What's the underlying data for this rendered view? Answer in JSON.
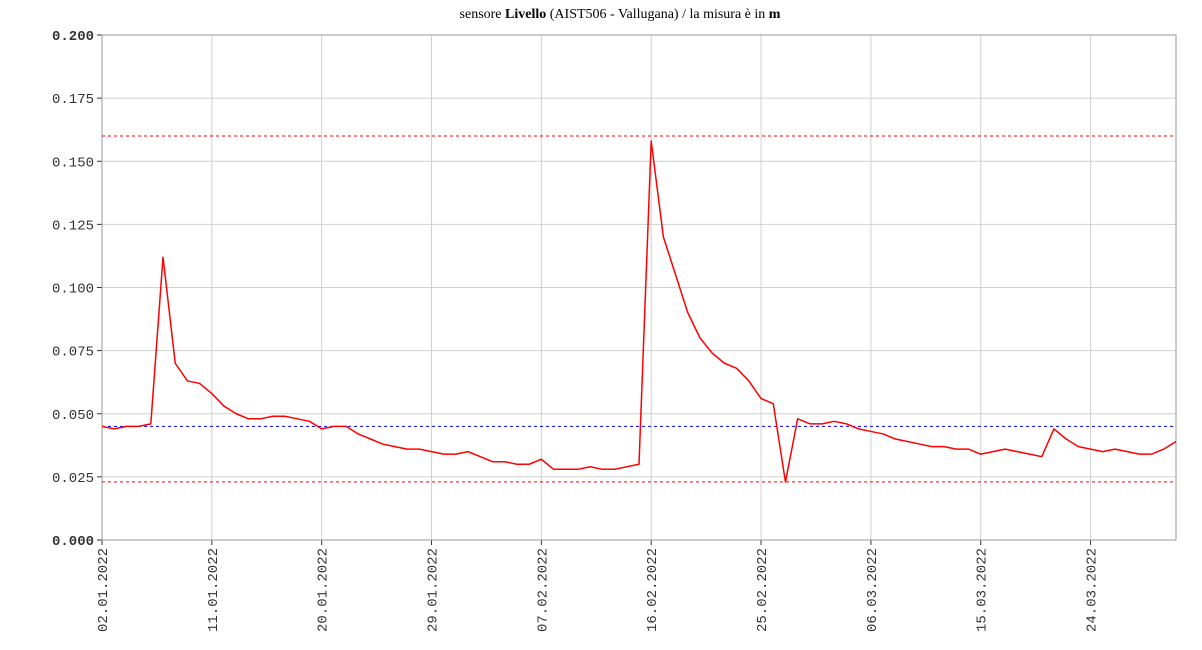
{
  "chart_data": {
    "type": "line",
    "title_parts": [
      {
        "text": "sensore ",
        "bold": false
      },
      {
        "text": "Livello",
        "bold": true
      },
      {
        "text": " (AIST506 - Vallugana) / la misura è in ",
        "bold": false
      },
      {
        "text": "m",
        "bold": true
      }
    ],
    "x": [
      "2022-01-02",
      "2022-01-03",
      "2022-01-04",
      "2022-01-05",
      "2022-01-06",
      "2022-01-07",
      "2022-01-08",
      "2022-01-09",
      "2022-01-10",
      "2022-01-11",
      "2022-01-12",
      "2022-01-13",
      "2022-01-14",
      "2022-01-15",
      "2022-01-16",
      "2022-01-17",
      "2022-01-18",
      "2022-01-19",
      "2022-01-20",
      "2022-01-21",
      "2022-01-22",
      "2022-01-23",
      "2022-01-24",
      "2022-01-25",
      "2022-01-26",
      "2022-01-27",
      "2022-01-28",
      "2022-01-29",
      "2022-01-30",
      "2022-01-31",
      "2022-02-01",
      "2022-02-02",
      "2022-02-03",
      "2022-02-04",
      "2022-02-05",
      "2022-02-06",
      "2022-02-07",
      "2022-02-08",
      "2022-02-09",
      "2022-02-10",
      "2022-02-11",
      "2022-02-12",
      "2022-02-13",
      "2022-02-14",
      "2022-02-15",
      "2022-02-16",
      "2022-02-17",
      "2022-02-18",
      "2022-02-19",
      "2022-02-20",
      "2022-02-21",
      "2022-02-22",
      "2022-02-23",
      "2022-02-24",
      "2022-02-25",
      "2022-02-26",
      "2022-02-27",
      "2022-02-28",
      "2022-03-01",
      "2022-03-02",
      "2022-03-03",
      "2022-03-04",
      "2022-03-05",
      "2022-03-06",
      "2022-03-07",
      "2022-03-08",
      "2022-03-09",
      "2022-03-10",
      "2022-03-11",
      "2022-03-12",
      "2022-03-13",
      "2022-03-14",
      "2022-03-15",
      "2022-03-16",
      "2022-03-17",
      "2022-03-18",
      "2022-03-19",
      "2022-03-20",
      "2022-03-21",
      "2022-03-22",
      "2022-03-23",
      "2022-03-24",
      "2022-03-25",
      "2022-03-26",
      "2022-03-27",
      "2022-03-28",
      "2022-03-29",
      "2022-03-30",
      "2022-03-31"
    ],
    "series": [
      {
        "name": "Livello",
        "color": "#ff0000",
        "values": [
          0.045,
          0.044,
          0.045,
          0.045,
          0.046,
          0.112,
          0.07,
          0.063,
          0.062,
          0.058,
          0.053,
          0.05,
          0.048,
          0.048,
          0.049,
          0.049,
          0.048,
          0.047,
          0.044,
          0.045,
          0.045,
          0.042,
          0.04,
          0.038,
          0.037,
          0.036,
          0.036,
          0.035,
          0.034,
          0.034,
          0.035,
          0.033,
          0.031,
          0.031,
          0.03,
          0.03,
          0.032,
          0.028,
          0.028,
          0.028,
          0.029,
          0.028,
          0.028,
          0.029,
          0.03,
          0.158,
          0.12,
          0.105,
          0.09,
          0.08,
          0.074,
          0.07,
          0.068,
          0.063,
          0.056,
          0.054,
          0.023,
          0.048,
          0.046,
          0.046,
          0.047,
          0.046,
          0.044,
          0.043,
          0.042,
          0.04,
          0.039,
          0.038,
          0.037,
          0.037,
          0.036,
          0.036,
          0.034,
          0.035,
          0.036,
          0.035,
          0.034,
          0.033,
          0.044,
          0.04,
          0.037,
          0.036,
          0.035,
          0.036,
          0.035,
          0.034,
          0.034,
          0.036,
          0.039
        ]
      }
    ],
    "reference_lines": [
      {
        "value": 0.16,
        "color": "#ff0000"
      },
      {
        "value": 0.045,
        "color": "#0000ff"
      },
      {
        "value": 0.023,
        "color": "#ff0000"
      }
    ],
    "xlim": [
      "2022-01-02",
      "2022-03-31"
    ],
    "xticks": [
      {
        "value": "2022-01-02",
        "label": "02.01.2022"
      },
      {
        "value": "2022-01-11",
        "label": "11.01.2022"
      },
      {
        "value": "2022-01-20",
        "label": "20.01.2022"
      },
      {
        "value": "2022-01-29",
        "label": "29.01.2022"
      },
      {
        "value": "2022-02-07",
        "label": "07.02.2022"
      },
      {
        "value": "2022-02-16",
        "label": "16.02.2022"
      },
      {
        "value": "2022-02-25",
        "label": "25.02.2022"
      },
      {
        "value": "2022-03-06",
        "label": "06.03.2022"
      },
      {
        "value": "2022-03-15",
        "label": "15.03.2022"
      },
      {
        "value": "2022-03-24",
        "label": "24.03.2022"
      }
    ],
    "ylim": [
      0,
      0.2
    ],
    "yticks": [
      {
        "value": 0,
        "label": "0.000"
      },
      0.025,
      {
        "value": 0.05,
        "label": "0.050"
      },
      0.075,
      {
        "value": 0.1,
        "label": "0.100"
      },
      0.125,
      {
        "value": 0.15,
        "label": "0.150"
      },
      0.175,
      {
        "value": 0.2,
        "label": "0.200"
      }
    ],
    "grid": true
  }
}
